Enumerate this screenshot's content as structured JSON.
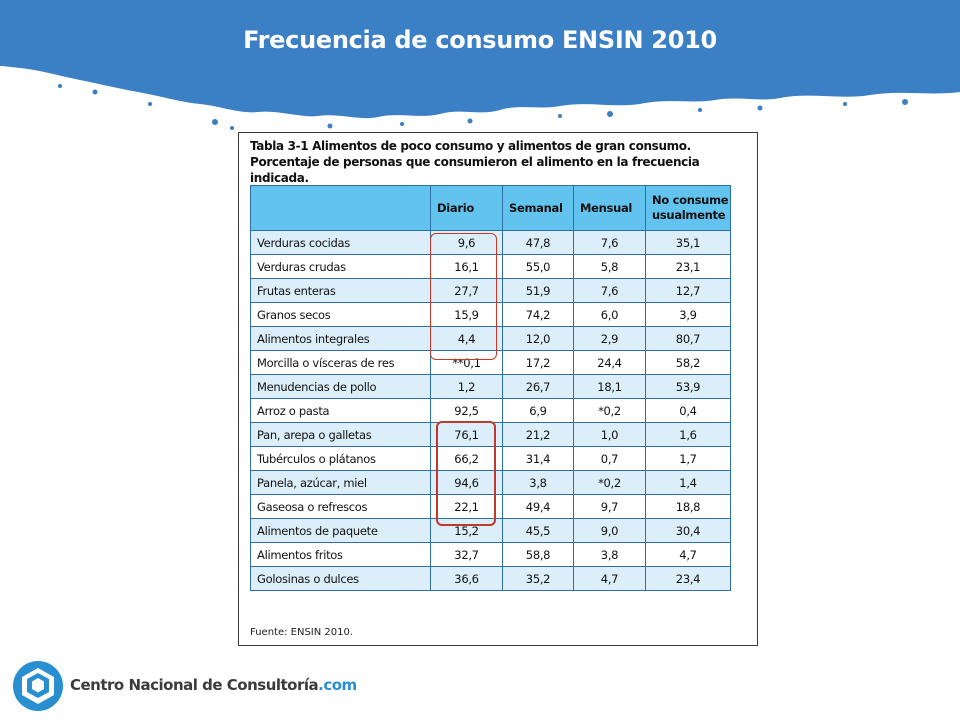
{
  "slide": {
    "title": "Frecuencia de consumo ENSIN 2010"
  },
  "figure": {
    "caption_line1": "Tabla 3-1 Alimentos de poco consumo y alimentos de gran consumo.",
    "caption_line2": "Porcentaje de personas que consumieron el alimento en la frecuencia indicada.",
    "source": "Fuente: ENSIN 2010.",
    "table": {
      "headers": [
        "",
        "Diario",
        "Semanal",
        "Mensual",
        "No consume usualmente"
      ],
      "rows": [
        [
          "Verduras cocidas",
          "9,6",
          "47,8",
          "7,6",
          "35,1"
        ],
        [
          "Verduras crudas",
          "16,1",
          "55,0",
          "5,8",
          "23,1"
        ],
        [
          "Frutas enteras",
          "27,7",
          "51,9",
          "7,6",
          "12,7"
        ],
        [
          "Granos secos",
          "15,9",
          "74,2",
          "6,0",
          "3,9"
        ],
        [
          "Alimentos integrales",
          "4,4",
          "12,0",
          "2,9",
          "80,7"
        ],
        [
          "Morcilla o vísceras de res",
          "**0,1",
          "17,2",
          "24,4",
          "58,2"
        ],
        [
          "Menudencias de pollo",
          "1,2",
          "26,7",
          "18,1",
          "53,9"
        ],
        [
          "Arroz o pasta",
          "92,5",
          "6,9",
          "*0,2",
          "0,4"
        ],
        [
          "Pan, arepa o galletas",
          "76,1",
          "21,2",
          "1,0",
          "1,6"
        ],
        [
          "Tubérculos o plátanos",
          "66,2",
          "31,4",
          "0,7",
          "1,7"
        ],
        [
          "Panela, azúcar, miel",
          "94,6",
          "3,8",
          "*0,2",
          "1,4"
        ],
        [
          "Gaseosa o refrescos",
          "22,1",
          "49,4",
          "9,7",
          "18,8"
        ],
        [
          "Alimentos de paquete",
          "15,2",
          "45,5",
          "9,0",
          "30,4"
        ],
        [
          "Alimentos fritos",
          "32,7",
          "58,8",
          "3,8",
          "4,7"
        ],
        [
          "Golosinas o dulces",
          "36,6",
          "35,2",
          "4,7",
          "23,4"
        ]
      ]
    }
  },
  "footer": {
    "brand": "Centro Nacional de Consultoría",
    "brand_suffix": ".com"
  },
  "colors": {
    "header_blue": "#3b7fc4",
    "table_header": "#62c4ee",
    "row_stripe": "#dbeef9",
    "highlight_red": "#c0392b"
  }
}
